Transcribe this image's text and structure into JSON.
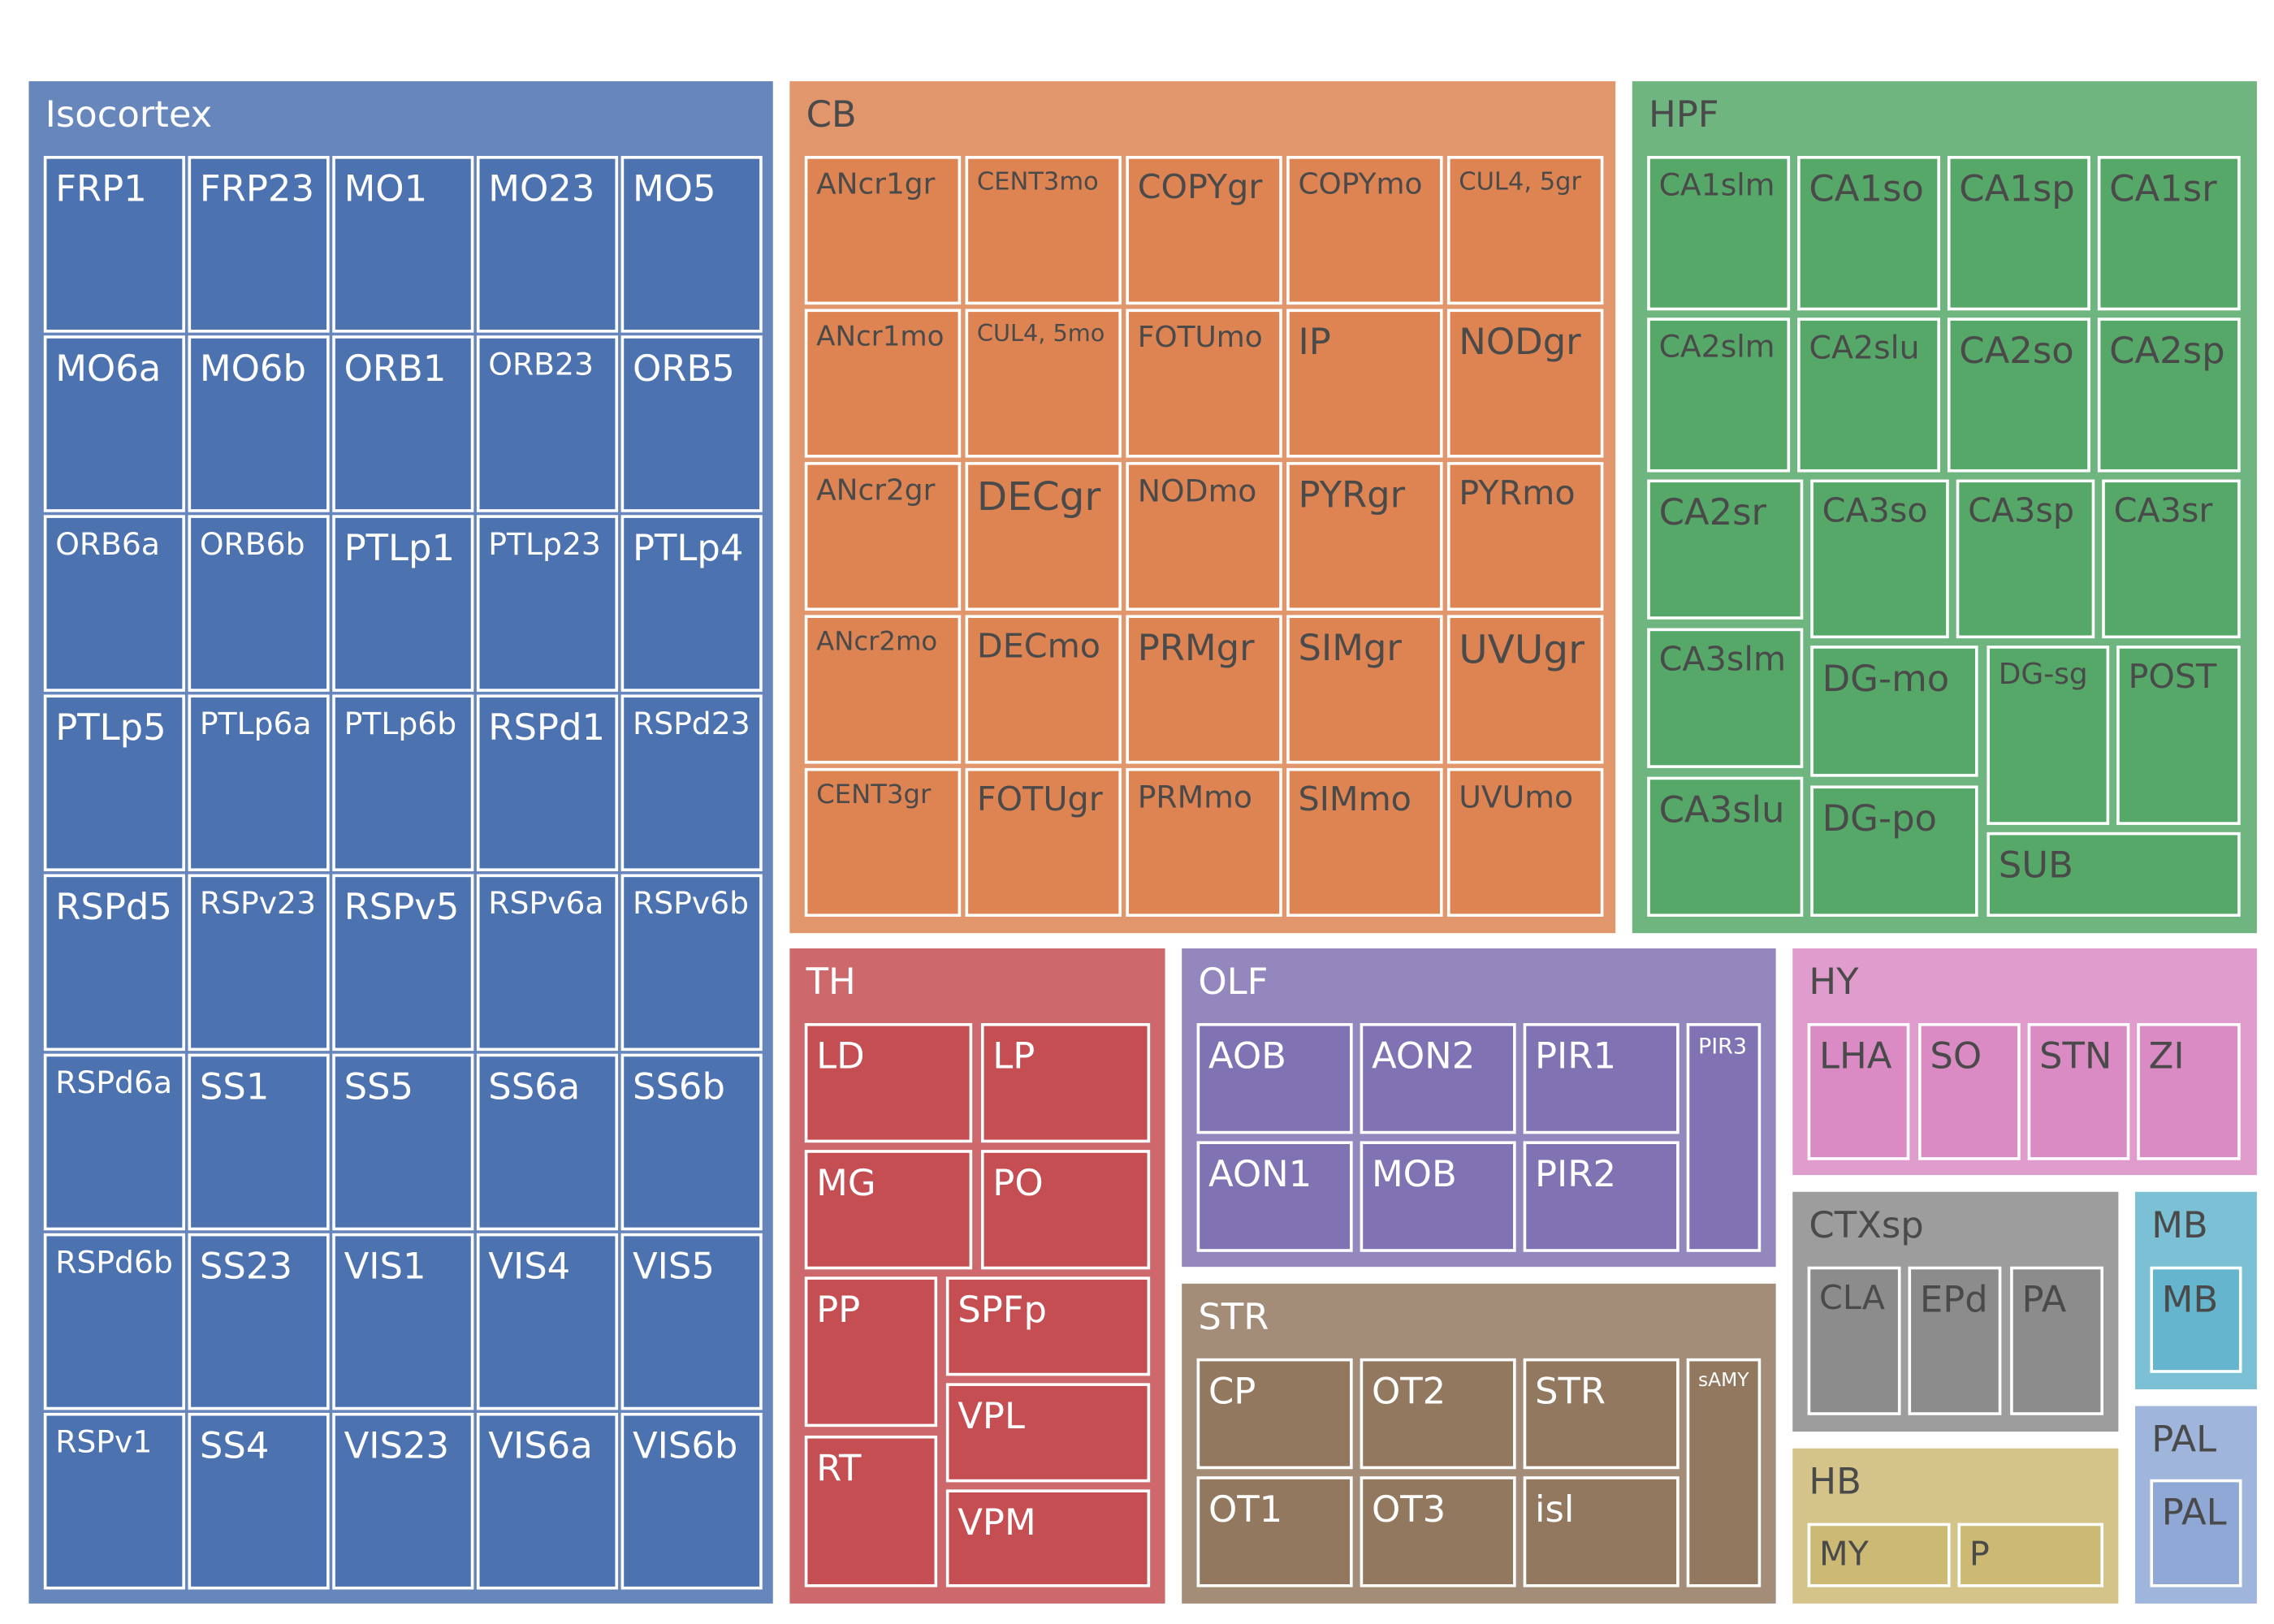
{
  "chart_data": {
    "type": "treemap",
    "title": "",
    "groups": [
      {
        "name": "Isocortex",
        "color": "#4c72b0",
        "leaves": [
          "FRP1",
          "FRP23",
          "MO1",
          "MO23",
          "MO5",
          "MO6a",
          "MO6b",
          "ORB1",
          "ORB23",
          "ORB5",
          "ORB6a",
          "ORB6b",
          "PTLp1",
          "PTLp23",
          "PTLp4",
          "PTLp5",
          "PTLp6a",
          "PTLp6b",
          "RSPd1",
          "RSPd23",
          "RSPd5",
          "RSPv23",
          "RSPv5",
          "RSPv6a",
          "RSPv6b",
          "RSPd6a",
          "SS1",
          "SS5",
          "SS6a",
          "SS6b",
          "RSPd6b",
          "SS23",
          "VIS1",
          "VIS4",
          "VIS5",
          "RSPv1",
          "SS4",
          "VIS23",
          "VIS6a",
          "VIS6b"
        ]
      },
      {
        "name": "CB",
        "color": "#dd8452",
        "leaves": [
          "ANcr1gr",
          "CENT3mo",
          "COPYgr",
          "COPYmo",
          "CUL4, 5gr",
          "ANcr1mo",
          "CUL4, 5mo",
          "FOTUmo",
          "IP",
          "NODgr",
          "ANcr2gr",
          "DECgr",
          "NODmo",
          "PYRgr",
          "PYRmo",
          "ANcr2mo",
          "DECmo",
          "PRMgr",
          "SIMgr",
          "UVUgr",
          "CENT3gr",
          "FOTUgr",
          "PRMmo",
          "SIMmo",
          "UVUmo"
        ]
      },
      {
        "name": "HPF",
        "color": "#55a868",
        "leaves": [
          "CA1slm",
          "CA1so",
          "CA1sp",
          "CA1sr",
          "CA2slm",
          "CA2slu",
          "CA2so",
          "CA2sp",
          "CA2sr",
          "CA3so",
          "CA3sp",
          "CA3sr",
          "CA3slm",
          "DG-mo",
          "DG-sg",
          "POST",
          "CA3slu",
          "DG-po",
          "SUB"
        ]
      },
      {
        "name": "TH",
        "color": "#c44e52",
        "leaves": [
          "LD",
          "LP",
          "MG",
          "PO",
          "PP",
          "SPFp",
          "VPL",
          "RT",
          "VPM"
        ]
      },
      {
        "name": "OLF",
        "color": "#8172b3",
        "leaves": [
          "AOB",
          "AON2",
          "PIR1",
          "PIR3",
          "AON1",
          "MOB",
          "PIR2"
        ]
      },
      {
        "name": "STR",
        "color": "#937860",
        "leaves": [
          "CP",
          "OT2",
          "STR",
          "sAMY",
          "OT1",
          "OT3",
          "isl"
        ]
      },
      {
        "name": "HY",
        "color": "#da8bc3",
        "leaves": [
          "LHA",
          "SO",
          "STN",
          "ZI"
        ]
      },
      {
        "name": "CTXsp",
        "color": "#8c8c8c",
        "leaves": [
          "CLA",
          "EPd",
          "PA"
        ]
      },
      {
        "name": "MB",
        "color": "#64b5cd",
        "leaves": [
          "MB"
        ]
      },
      {
        "name": "HB",
        "color": "#ccb974",
        "leaves": [
          "MY",
          "P"
        ]
      },
      {
        "name": "PAL",
        "color": "#8fa8d6",
        "leaves": [
          "PAL"
        ]
      }
    ]
  }
}
